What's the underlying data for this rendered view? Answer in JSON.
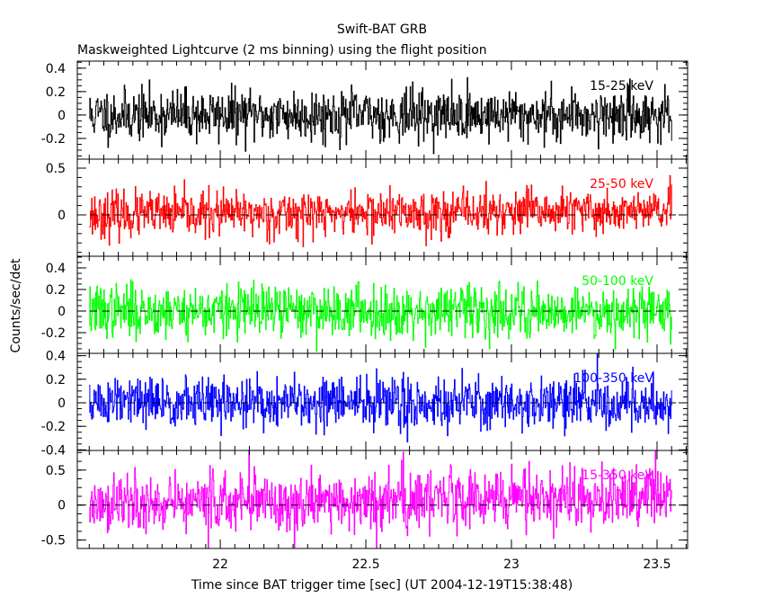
{
  "chart_data": {
    "type": "line",
    "title": "Swift-BAT GRB",
    "subtitle": "Maskweighted Lightcurve (2 ms binning) using the flight position",
    "xlabel": "Time since BAT trigger time [sec] (UT 2004-12-19T15:38:48)",
    "ylabel": "Counts/sec/det",
    "xlim": [
      21.509,
      23.605
    ],
    "x_ticks": [
      "22",
      "22.5",
      "23",
      "23.5"
    ],
    "x_tick_values": [
      22,
      22.5,
      23,
      23.5
    ],
    "data_x_range": [
      21.55,
      23.55
    ],
    "bin_width_sec": 0.002,
    "note_values": "per-bin values are noise around zero, generated from the listed sigma/seed",
    "panels": [
      {
        "name": "15-25 keV",
        "color": "#000000",
        "ylim": [
          -0.377,
          0.46
        ],
        "y_ticks": [
          "-0.2",
          "0",
          "0.2",
          "0.4"
        ],
        "y_tick_values": [
          -0.2,
          0,
          0.2,
          0.4
        ],
        "sigma": 0.11,
        "trend": 0,
        "seed": 11,
        "zero_line": false
      },
      {
        "name": "25-50 keV",
        "color": "#ff0000",
        "ylim": [
          -0.442,
          0.596
        ],
        "y_ticks": [
          "0",
          "0.5"
        ],
        "y_tick_values": [
          0,
          0.5
        ],
        "sigma": 0.12,
        "trend": 0.04,
        "seed": 23,
        "zero_line": true
      },
      {
        "name": "50-100 keV",
        "color": "#00ff00",
        "ylim": [
          -0.392,
          0.508
        ],
        "y_ticks": [
          "-0.2",
          "0",
          "0.2",
          "0.4"
        ],
        "y_tick_values": [
          -0.2,
          0,
          0.2,
          0.4
        ],
        "sigma": 0.12,
        "trend": 0,
        "seed": 37,
        "zero_line": true
      },
      {
        "name": "100-350 keV",
        "color": "#0000ff",
        "ylim": [
          -0.405,
          0.42
        ],
        "y_ticks": [
          "-0.4",
          "-0.2",
          "0",
          "0.2",
          "0.4"
        ],
        "y_tick_values": [
          -0.4,
          -0.2,
          0,
          0.2,
          0.4
        ],
        "sigma": 0.11,
        "trend": 0,
        "seed": 51,
        "zero_line": true
      },
      {
        "name": "15-350 keV",
        "color": "#ff00ff",
        "ylim": [
          -0.62,
          0.78
        ],
        "y_ticks": [
          "-0.5",
          "0",
          "0.5"
        ],
        "y_tick_values": [
          -0.5,
          0,
          0.5
        ],
        "sigma": 0.22,
        "trend": 0.12,
        "seed": 77,
        "zero_line": true
      }
    ]
  }
}
